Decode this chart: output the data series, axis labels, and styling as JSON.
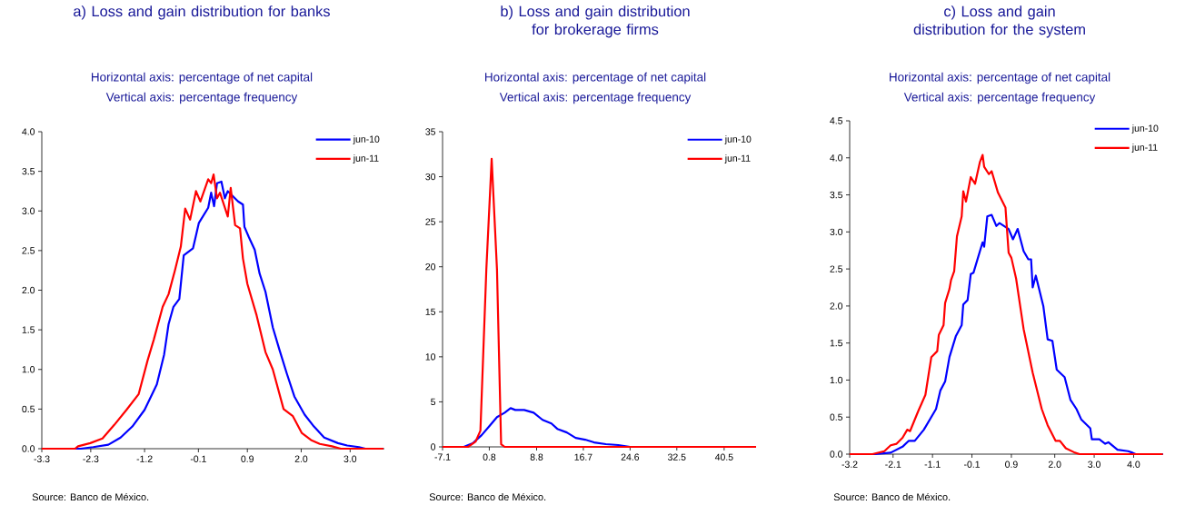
{
  "chart_data": [
    {
      "type": "line",
      "title": "a) Loss and gain distribution for banks",
      "xlabel": "Horizontal axis: percentage of net capital",
      "ylabel": "Vertical axis: percentage frequency",
      "annotations": [
        "Source: Banco de México."
      ],
      "xlim": [
        -3.3,
        3.7
      ],
      "xticks": [
        -3.3,
        -2.3,
        -1.2,
        -0.1,
        0.9,
        {
          "value": 2,
          "label": "2.0"
        },
        {
          "value": 3,
          "label": "3.0"
        }
      ],
      "ylim": [
        0,
        4
      ],
      "yticks": [
        {
          "value": 0,
          "label": "0.0"
        },
        0.5,
        {
          "value": 1,
          "label": "1.0"
        },
        1.5,
        {
          "value": 2,
          "label": "2.0"
        },
        2.5,
        {
          "value": 3,
          "label": "3.0"
        },
        3.5,
        {
          "value": 4,
          "label": "4.0"
        }
      ],
      "legend": "top right",
      "series": [
        {
          "name": "jun-10",
          "color": "#0000ff",
          "x": [
            -3.3,
            -2.5,
            -2.25,
            -1.94,
            -1.69,
            -1.45,
            -1.2,
            -0.95,
            -0.8,
            -0.71,
            -0.61,
            -0.49,
            -0.4,
            -0.21,
            -0.09,
            0.1,
            0.16,
            0.22,
            0.28,
            0.37,
            0.44,
            0.5,
            0.71,
            0.81,
            0.84,
            0.93,
            1.05,
            1.15,
            1.27,
            1.42,
            1.55,
            1.7,
            1.86,
            2.07,
            2.26,
            2.47,
            2.75,
            2.94,
            3.18,
            3.31,
            3.68
          ],
          "values": [
            0,
            0,
            0.02,
            0.05,
            0.14,
            0.28,
            0.49,
            0.81,
            1.19,
            1.57,
            1.79,
            1.89,
            2.44,
            2.53,
            2.85,
            3.04,
            3.23,
            3.06,
            3.35,
            3.37,
            3.16,
            3.25,
            3.12,
            3.08,
            2.8,
            2.67,
            2.51,
            2.21,
            1.98,
            1.53,
            1.26,
            0.96,
            0.66,
            0.43,
            0.28,
            0.14,
            0.07,
            0.04,
            0.02,
            0,
            0
          ]
        },
        {
          "name": "jun-11",
          "color": "#ff0000",
          "x": [
            -3.3,
            -2.62,
            -2.56,
            -2.31,
            -2.06,
            -1.82,
            -1.57,
            -1.32,
            -1.14,
            -1.01,
            -0.83,
            -0.71,
            -0.58,
            -0.46,
            -0.37,
            -0.27,
            -0.15,
            -0.06,
            0.1,
            0.16,
            0.21,
            0.28,
            0.34,
            0.5,
            0.56,
            0.65,
            0.75,
            0.81,
            0.9,
            1.09,
            1.27,
            1.42,
            1.64,
            1.83,
            2.01,
            2.2,
            2.38,
            2.63,
            2.81,
            3.68
          ],
          "values": [
            0,
            0,
            0.03,
            0.07,
            0.13,
            0.3,
            0.49,
            0.69,
            1.11,
            1.38,
            1.79,
            1.95,
            2.25,
            2.55,
            3.03,
            2.89,
            3.25,
            3.12,
            3.4,
            3.35,
            3.46,
            3.16,
            3.23,
            2.93,
            3.29,
            2.82,
            2.78,
            2.4,
            2.08,
            1.68,
            1.22,
            1.0,
            0.5,
            0.41,
            0.2,
            0.11,
            0.06,
            0.03,
            0,
            0
          ]
        }
      ]
    },
    {
      "type": "line",
      "title": "b) Loss and gain distribution for brokerage firms",
      "xlabel": "Horizontal axis: percentage of net capital",
      "ylabel": "Vertical axis: percentage frequency",
      "annotations": [
        "Source: Banco de México."
      ],
      "xlim": [
        -7.1,
        45.9
      ],
      "xticks": [
        -7.1,
        0.8,
        8.8,
        16.7,
        24.6,
        32.5,
        40.5
      ],
      "ylim": [
        0,
        35
      ],
      "yticks": [
        0,
        5,
        10,
        15,
        20,
        25,
        30,
        35
      ],
      "legend": "top right",
      "series": [
        {
          "name": "jun-10",
          "color": "#0000ff",
          "x": [
            -7.1,
            -3.5,
            -2.0,
            -0.5,
            0.8,
            2.1,
            3.4,
            4.4,
            5.2,
            6.7,
            8.3,
            9.8,
            11.3,
            12.3,
            13.9,
            15.4,
            17.0,
            18.5,
            20.5,
            22.6,
            24.6,
            45.9
          ],
          "values": [
            0,
            0,
            0.4,
            1.3,
            2.3,
            3.3,
            3.8,
            4.3,
            4.1,
            4.1,
            3.8,
            3.0,
            2.6,
            2.0,
            1.6,
            1.0,
            0.8,
            0.5,
            0.3,
            0.2,
            0,
            0
          ]
        },
        {
          "name": "jun-11",
          "color": "#ff0000",
          "x": [
            -7.1,
            -2.8,
            -1.5,
            -0.7,
            0.3,
            1.2,
            2.1,
            2.8,
            3.4,
            45.9
          ],
          "values": [
            0,
            0,
            0.6,
            1.8,
            19.7,
            32.0,
            19.7,
            0.3,
            0,
            0
          ]
        }
      ]
    },
    {
      "type": "line",
      "title": "c) Loss and gain distribution for the system",
      "xlabel": "Horizontal axis: percentage of net capital",
      "ylabel": "Vertical axis: percentage frequency",
      "annotations": [
        "Source: Banco de México."
      ],
      "xlim": [
        -3.2,
        4.75
      ],
      "xticks": [
        -3.2,
        -2.1,
        -1.1,
        -0.1,
        0.9,
        {
          "value": 2,
          "label": "2.0"
        },
        {
          "value": 3,
          "label": "3.0"
        },
        {
          "value": 4,
          "label": "4.0"
        }
      ],
      "ylim": [
        0,
        4.5
      ],
      "yticks": [
        {
          "value": 0,
          "label": "0.0"
        },
        0.5,
        {
          "value": 1,
          "label": "1.0"
        },
        1.5,
        {
          "value": 2,
          "label": "2.0"
        },
        2.5,
        {
          "value": 3,
          "label": "3.0"
        },
        3.5,
        {
          "value": 4,
          "label": "4.0"
        },
        4.5
      ],
      "legend": "top right",
      "series": [
        {
          "name": "jun-10",
          "color": "#0000ff",
          "x": [
            -3.2,
            -2.55,
            -2.16,
            -1.86,
            -1.7,
            -1.55,
            -1.32,
            -1.01,
            -0.9,
            -0.78,
            -0.67,
            -0.51,
            -0.36,
            -0.32,
            -0.21,
            -0.13,
            -0.06,
            0.17,
            0.21,
            0.29,
            0.4,
            0.52,
            0.6,
            0.83,
            0.94,
            1.06,
            1.21,
            1.33,
            1.4,
            1.44,
            1.52,
            1.71,
            1.82,
            1.94,
            2.05,
            2.25,
            2.4,
            2.55,
            2.67,
            2.9,
            2.94,
            3.13,
            3.28,
            3.36,
            3.59,
            3.86,
            3.97,
            4.05,
            4.74
          ],
          "values": [
            0,
            0,
            0.02,
            0.1,
            0.18,
            0.18,
            0.33,
            0.61,
            0.86,
            0.98,
            1.31,
            1.59,
            1.74,
            2.02,
            2.08,
            2.43,
            2.45,
            2.86,
            2.8,
            3.21,
            3.23,
            3.08,
            3.12,
            3.04,
            2.9,
            3.04,
            2.74,
            2.63,
            2.63,
            2.25,
            2.41,
            2.0,
            1.55,
            1.53,
            1.14,
            1.04,
            0.73,
            0.61,
            0.47,
            0.35,
            0.2,
            0.2,
            0.14,
            0.16,
            0.06,
            0.04,
            0.02,
            0,
            0
          ]
        },
        {
          "name": "jun-11",
          "color": "#ff0000",
          "x": [
            -3.2,
            -2.62,
            -2.32,
            -2.16,
            -2.01,
            -1.86,
            -1.74,
            -1.67,
            -1.47,
            -1.28,
            -1.13,
            -0.98,
            -0.94,
            -0.82,
            -0.78,
            -0.67,
            -0.63,
            -0.55,
            -0.48,
            -0.36,
            -0.32,
            -0.25,
            -0.13,
            -0.02,
            0.1,
            0.17,
            0.21,
            0.33,
            0.4,
            0.56,
            0.75,
            0.83,
            0.9,
            1.02,
            1.21,
            1.44,
            1.67,
            1.82,
            2.02,
            2.13,
            2.28,
            2.51,
            2.63,
            4.74
          ],
          "values": [
            0,
            0,
            0.04,
            0.12,
            0.14,
            0.22,
            0.33,
            0.31,
            0.57,
            0.8,
            1.31,
            1.39,
            1.61,
            1.74,
            2.04,
            2.23,
            2.35,
            2.47,
            2.94,
            3.21,
            3.55,
            3.41,
            3.74,
            3.65,
            3.94,
            4.04,
            3.88,
            3.78,
            3.82,
            3.53,
            3.33,
            2.72,
            2.65,
            2.37,
            1.69,
            1.1,
            0.61,
            0.39,
            0.18,
            0.18,
            0.08,
            0.02,
            0,
            0
          ]
        }
      ]
    }
  ]
}
